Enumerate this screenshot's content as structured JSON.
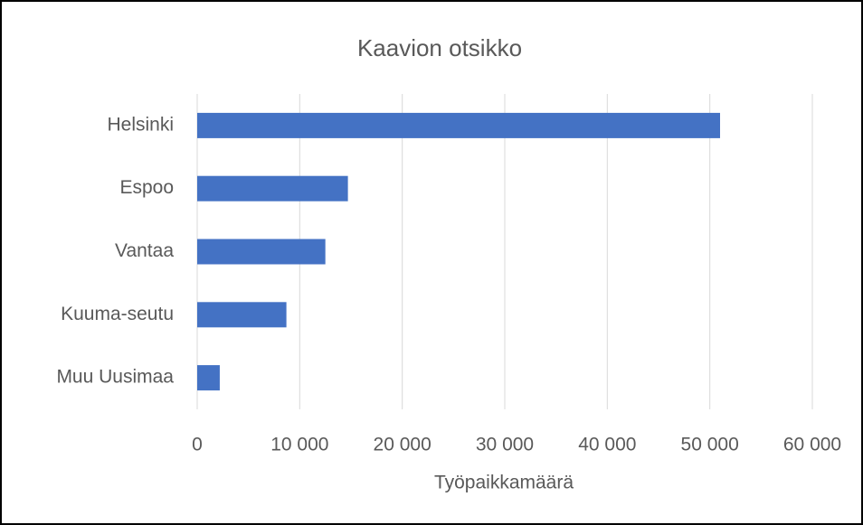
{
  "chart_data": {
    "type": "hbar",
    "title": "Kaavion otsikko",
    "x_label": "Työpaikkamäärä",
    "categories": [
      "Helsinki",
      "Espoo",
      "Vantaa",
      "Kuuma-seutu",
      "Muu Uusimaa"
    ],
    "values": [
      51000,
      14700,
      12500,
      8700,
      2200
    ],
    "color": "#4472c4",
    "xlim": [
      0,
      60000
    ],
    "xticks": [
      0,
      {
        "value": 10000,
        "label": "10 000"
      },
      {
        "value": 20000,
        "label": "20 000"
      },
      {
        "value": 30000,
        "label": "30 000"
      },
      {
        "value": 40000,
        "label": "40 000"
      },
      {
        "value": 50000,
        "label": "50 000"
      },
      {
        "value": 60000,
        "label": "60 000"
      }
    ],
    "grid": true
  }
}
